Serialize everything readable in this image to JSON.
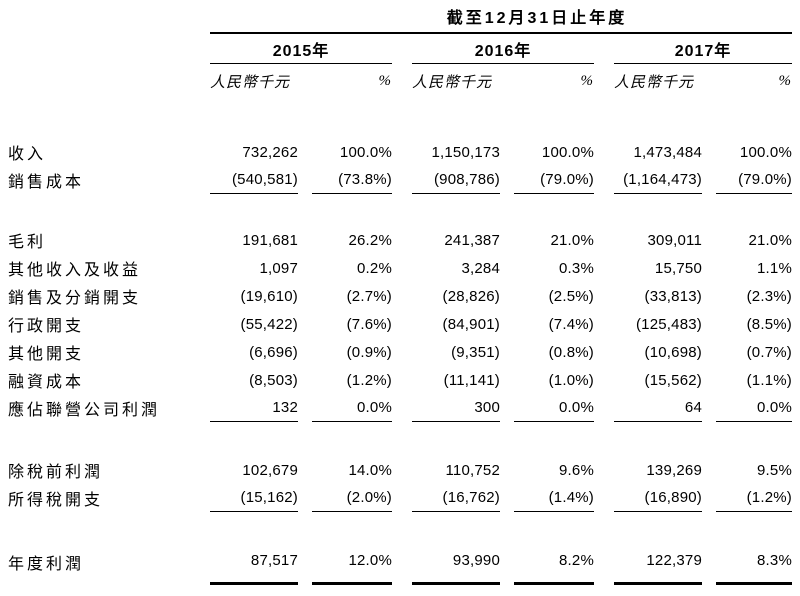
{
  "table": {
    "period_header": "截至12月31日止年度",
    "years": [
      "2015年",
      "2016年",
      "2017年"
    ],
    "unit": "人民幣千元",
    "pct": "%",
    "rows": [
      {
        "label": "收入",
        "v": [
          "732,262",
          "100.0%",
          "1,150,173",
          "100.0%",
          "1,473,484",
          "100.0%"
        ]
      },
      {
        "label": "銷售成本",
        "v": [
          "(540,581)",
          "(73.8%)",
          "(908,786)",
          "(79.0%)",
          "(1,164,473)",
          "(79.0%)"
        ]
      },
      {
        "label": "毛利",
        "v": [
          "191,681",
          "26.2%",
          "241,387",
          "21.0%",
          "309,011",
          "21.0%"
        ]
      },
      {
        "label": "其他收入及收益",
        "v": [
          "1,097",
          "0.2%",
          "3,284",
          "0.3%",
          "15,750",
          "1.1%"
        ]
      },
      {
        "label": "銷售及分銷開支",
        "v": [
          "(19,610)",
          "(2.7%)",
          "(28,826)",
          "(2.5%)",
          "(33,813)",
          "(2.3%)"
        ]
      },
      {
        "label": "行政開支",
        "v": [
          "(55,422)",
          "(7.6%)",
          "(84,901)",
          "(7.4%)",
          "(125,483)",
          "(8.5%)"
        ]
      },
      {
        "label": "其他開支",
        "v": [
          "(6,696)",
          "(0.9%)",
          "(9,351)",
          "(0.8%)",
          "(10,698)",
          "(0.7%)"
        ]
      },
      {
        "label": "融資成本",
        "v": [
          "(8,503)",
          "(1.2%)",
          "(11,141)",
          "(1.0%)",
          "(15,562)",
          "(1.1%)"
        ]
      },
      {
        "label": "應佔聯營公司利潤",
        "v": [
          "132",
          "0.0%",
          "300",
          "0.0%",
          "64",
          "0.0%"
        ]
      },
      {
        "label": "除稅前利潤",
        "v": [
          "102,679",
          "14.0%",
          "110,752",
          "9.6%",
          "139,269",
          "9.5%"
        ]
      },
      {
        "label": "所得稅開支",
        "v": [
          "(15,162)",
          "(2.0%)",
          "(16,762)",
          "(1.4%)",
          "(16,890)",
          "(1.2%)"
        ]
      },
      {
        "label": "年度利潤",
        "v": [
          "87,517",
          "12.0%",
          "93,990",
          "8.2%",
          "122,379",
          "8.3%"
        ]
      }
    ]
  }
}
